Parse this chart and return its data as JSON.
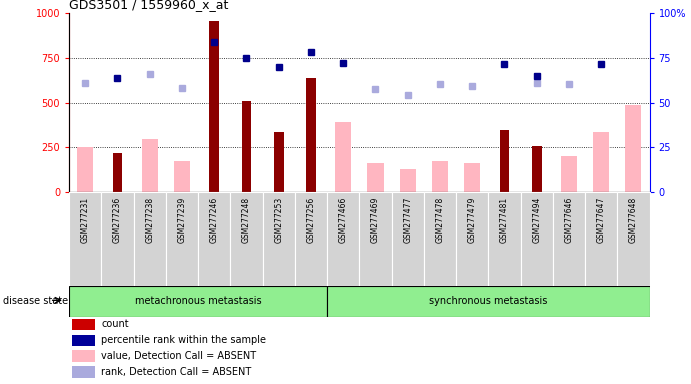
{
  "title": "GDS3501 / 1559960_x_at",
  "samples": [
    "GSM277231",
    "GSM277236",
    "GSM277238",
    "GSM277239",
    "GSM277246",
    "GSM277248",
    "GSM277253",
    "GSM277256",
    "GSM277466",
    "GSM277469",
    "GSM277477",
    "GSM277478",
    "GSM277479",
    "GSM277481",
    "GSM277494",
    "GSM277646",
    "GSM277647",
    "GSM277648"
  ],
  "count_values": [
    null,
    220,
    null,
    null,
    960,
    510,
    335,
    640,
    null,
    null,
    null,
    null,
    null,
    345,
    255,
    null,
    null,
    null
  ],
  "value_absent": [
    250,
    null,
    295,
    175,
    null,
    null,
    null,
    null,
    390,
    165,
    130,
    175,
    165,
    null,
    null,
    200,
    335,
    490
  ],
  "percentile_rank": [
    null,
    640,
    null,
    null,
    840,
    750,
    700,
    785,
    720,
    null,
    null,
    null,
    null,
    715,
    650,
    null,
    715,
    null
  ],
  "rank_absent": [
    610,
    null,
    660,
    580,
    null,
    null,
    null,
    null,
    null,
    575,
    545,
    605,
    595,
    null,
    610,
    605,
    null,
    null
  ],
  "group1_count": 8,
  "group2_count": 10,
  "group1_label": "metachronous metastasis",
  "group2_label": "synchronous metastasis",
  "disease_state_label": "disease state",
  "ylim_left": [
    0,
    1000
  ],
  "ylim_right": [
    0,
    100
  ],
  "yticks_left": [
    0,
    250,
    500,
    750,
    1000
  ],
  "yticks_right": [
    0,
    25,
    50,
    75,
    100
  ],
  "bar_color_count": "#8B0000",
  "bar_color_absent": "#FFB6C1",
  "dot_color_rank": "#00008B",
  "dot_color_rank_absent": "#AAAADD",
  "group_bg_color": "#90EE90",
  "sample_bg_color": "#D3D3D3",
  "legend_items": [
    {
      "color": "#CC0000",
      "label": "count"
    },
    {
      "color": "#000099",
      "label": "percentile rank within the sample"
    },
    {
      "color": "#FFB6C1",
      "label": "value, Detection Call = ABSENT"
    },
    {
      "color": "#AAAADD",
      "label": "rank, Detection Call = ABSENT"
    }
  ]
}
